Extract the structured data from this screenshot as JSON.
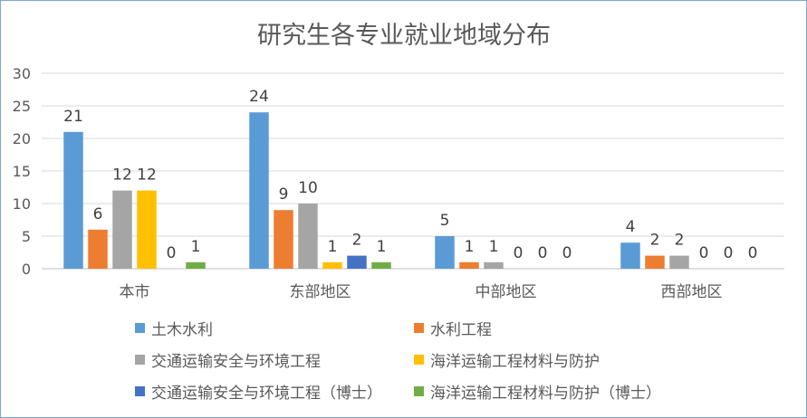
{
  "chart_data": {
    "type": "bar",
    "title": "研究生各专业就业地域分布",
    "categories": [
      "本市",
      "东部地区",
      "中部地区",
      "西部地区"
    ],
    "ylim": [
      0,
      30
    ],
    "yticks": [
      0,
      5,
      10,
      15,
      20,
      25,
      30
    ],
    "grid": true,
    "legend_position": "bottom",
    "series": [
      {
        "name": "土木水利",
        "color": "#5b9bd5",
        "values": [
          21,
          24,
          5,
          4
        ]
      },
      {
        "name": "水利工程",
        "color": "#ed7d31",
        "values": [
          6,
          9,
          1,
          2
        ]
      },
      {
        "name": "交通运输安全与环境工程",
        "color": "#a5a5a5",
        "values": [
          12,
          10,
          1,
          2
        ]
      },
      {
        "name": "海洋运输工程材料与防护",
        "color": "#ffc000",
        "values": [
          12,
          1,
          0,
          0
        ]
      },
      {
        "name": "交通运输安全与环境工程（博士）",
        "color": "#4472c4",
        "values": [
          0,
          2,
          0,
          0
        ]
      },
      {
        "name": "海洋运输工程材料与防护（博士）",
        "color": "#70ad47",
        "values": [
          1,
          1,
          0,
          0
        ]
      }
    ]
  }
}
